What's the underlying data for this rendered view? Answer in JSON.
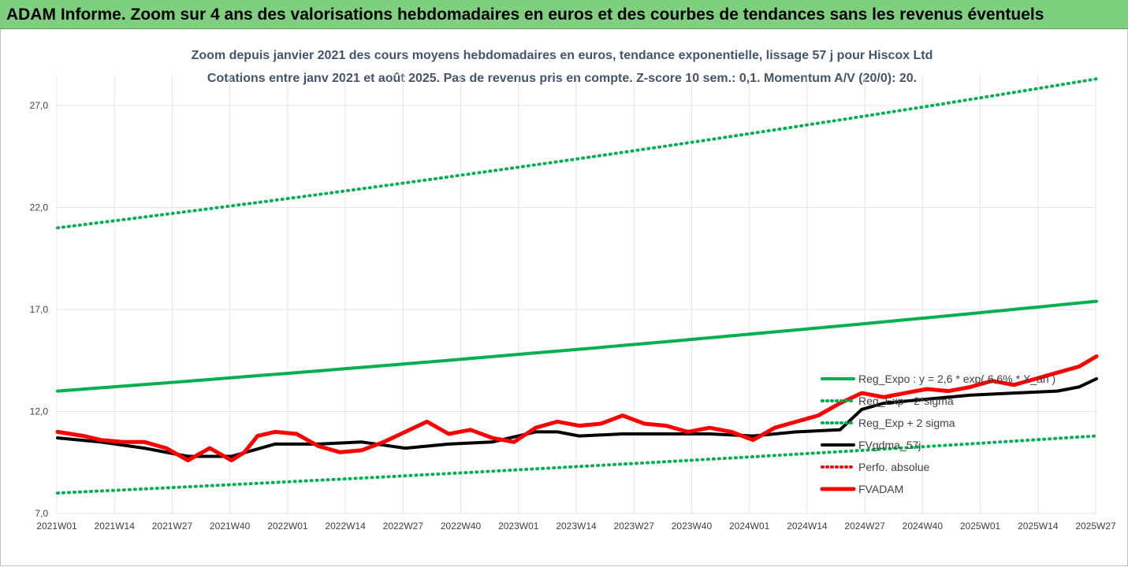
{
  "header": {
    "banner_title": "ADAM Informe. Zoom sur 4 ans des valorisations hebdomadaires en euros et des courbes de tendances sans les revenus éventuels"
  },
  "chart_data": {
    "type": "line",
    "title": "Zoom depuis janvier 2021 des cours moyens hebdomadaires en euros, tendance exponentielle, lissage 57 j pour Hiscox Ltd",
    "subtitle": "Cotations entre janv 2021 et août 2025. Pas de revenus pris en compte. Z-score 10 sem.: 0,1. Momentum A/V (20/0): 20.",
    "x_labels": [
      "2021W01",
      "2021W14",
      "2021W27",
      "2021W40",
      "2022W01",
      "2022W14",
      "2022W27",
      "2022W40",
      "2023W01",
      "2023W14",
      "2023W27",
      "2023W40",
      "2024W01",
      "2024W14",
      "2024W27",
      "2024W40",
      "2025W01",
      "2025W14",
      "2025W27"
    ],
    "y_ticks": [
      "7,0",
      "12,0",
      "17,0",
      "22,0",
      "27,0"
    ],
    "ylim": [
      7,
      28.5
    ],
    "x_count": 240,
    "grid": "vertical and horizontal",
    "legend_position": "right, inside plot",
    "series": [
      {
        "name": "Reg_Expo : y = 2,6 * exp( 6,6% * X_an )",
        "color": "#00b050",
        "style": "solid",
        "x": [
          0,
          239
        ],
        "values": [
          13.0,
          17.4
        ]
      },
      {
        "name": "Reg_Exp - 2*sigma",
        "color": "#00b050",
        "style": "dotted",
        "x": [
          0,
          239
        ],
        "values": [
          8.0,
          10.8
        ]
      },
      {
        "name": "Reg_Exp + 2 sigma",
        "color": "#00b050",
        "style": "dotted",
        "x": [
          0,
          239
        ],
        "values": [
          21.0,
          28.3
        ]
      },
      {
        "name": "FVgdma_57j",
        "color": "#000000",
        "style": "solid",
        "x": [
          0,
          10,
          20,
          30,
          40,
          50,
          60,
          70,
          80,
          90,
          100,
          110,
          115,
          120,
          130,
          140,
          150,
          160,
          170,
          180,
          185,
          190,
          200,
          210,
          220,
          230,
          235,
          239
        ],
        "values": [
          10.7,
          10.5,
          10.2,
          9.8,
          9.8,
          10.4,
          10.4,
          10.5,
          10.2,
          10.4,
          10.5,
          11.0,
          11.0,
          10.8,
          10.9,
          10.9,
          10.9,
          10.8,
          11.0,
          11.1,
          12.1,
          12.4,
          12.6,
          12.8,
          12.9,
          13.0,
          13.2,
          13.6
        ]
      },
      {
        "name": "Perfo. absolue",
        "color": "#ff0000",
        "style": "dotted",
        "x": [],
        "values": []
      },
      {
        "name": "FVADAM",
        "color": "#ff0000",
        "style": "solid-thick",
        "x": [
          0,
          3,
          6,
          10,
          15,
          20,
          25,
          30,
          35,
          40,
          43,
          46,
          50,
          55,
          60,
          65,
          70,
          75,
          80,
          85,
          90,
          95,
          100,
          105,
          110,
          115,
          120,
          125,
          130,
          135,
          140,
          145,
          150,
          155,
          160,
          165,
          170,
          175,
          180,
          185,
          190,
          195,
          200,
          205,
          210,
          215,
          220,
          225,
          230,
          235,
          239
        ],
        "values": [
          11.0,
          10.9,
          10.8,
          10.6,
          10.5,
          10.5,
          10.2,
          9.6,
          10.2,
          9.6,
          10.0,
          10.8,
          11.0,
          10.9,
          10.3,
          10.0,
          10.1,
          10.5,
          11.0,
          11.5,
          10.9,
          11.1,
          10.7,
          10.5,
          11.2,
          11.5,
          11.3,
          11.4,
          11.8,
          11.4,
          11.3,
          11.0,
          11.2,
          11.0,
          10.6,
          11.2,
          11.5,
          11.8,
          12.4,
          12.9,
          12.7,
          12.9,
          13.1,
          13.0,
          13.2,
          13.5,
          13.3,
          13.6,
          13.9,
          14.2,
          14.7
        ]
      }
    ]
  }
}
